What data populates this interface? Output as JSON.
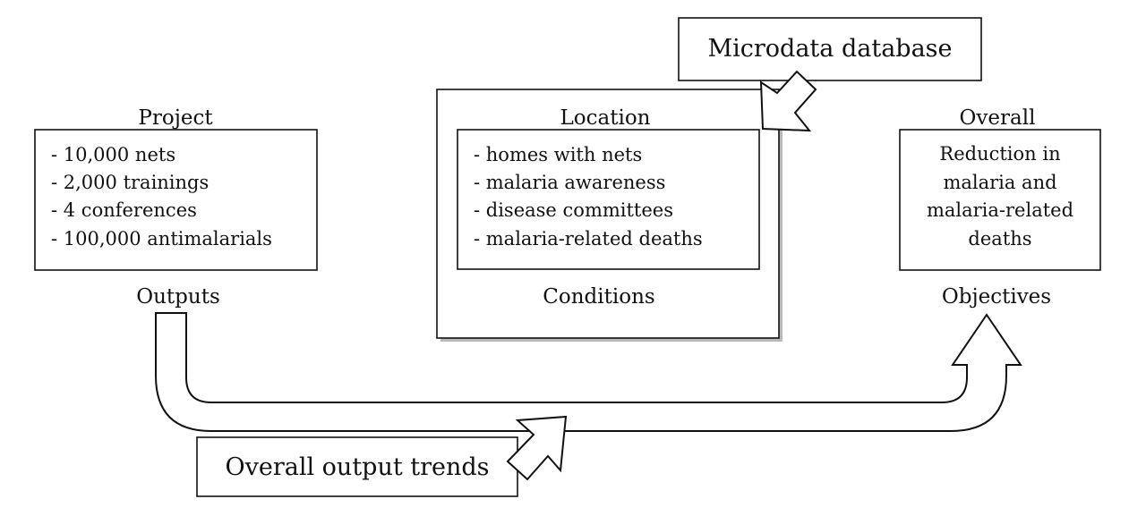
{
  "project": {
    "title": "Project",
    "items": [
      "- 10,000 nets",
      "- 2,000 trainings",
      "- 4 conferences",
      "- 100,000 antimalarials"
    ],
    "caption": "Outputs"
  },
  "location": {
    "title": "Location",
    "items": [
      "- homes with nets",
      "- malaria awareness",
      "- disease committees",
      "- malaria-related deaths"
    ],
    "caption": "Conditions"
  },
  "overall": {
    "title": "Overall",
    "lines": [
      "Reduction in",
      "malaria and",
      "malaria-related",
      "deaths"
    ],
    "caption": "Objectives"
  },
  "microdata": {
    "label": "Microdata database"
  },
  "trends": {
    "label": "Overall output trends"
  }
}
